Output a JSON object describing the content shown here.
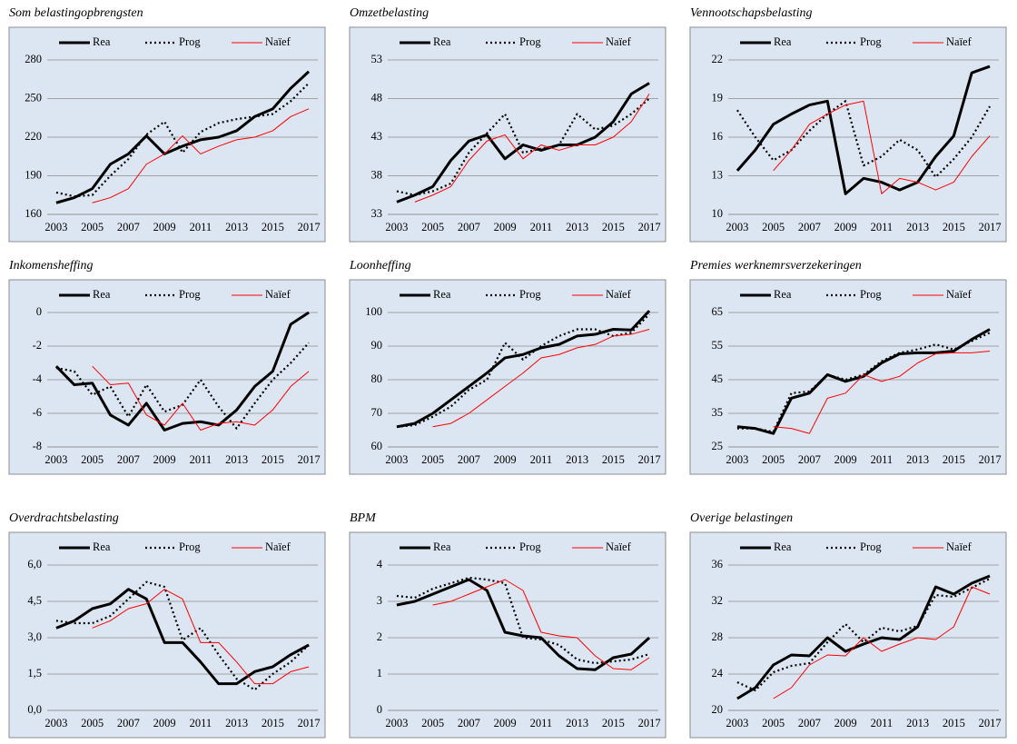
{
  "chart_data": [
    {
      "type": "line",
      "title": "Som belastingopbrengsten",
      "categories": [
        "2003",
        null,
        "2005",
        null,
        "2007",
        null,
        "2009",
        null,
        "2011",
        null,
        "2013",
        null,
        "2015",
        null,
        "2017"
      ],
      "series": [
        {
          "name": "Rea",
          "color": "#000000",
          "values": [
            169,
            173,
            180,
            199,
            207,
            221,
            207,
            213,
            218,
            220,
            225,
            236,
            242,
            258,
            271
          ]
        },
        {
          "name": "Prog",
          "color": "#000000",
          "values": [
            177,
            174,
            175,
            190,
            203,
            222,
            232,
            208,
            224,
            231,
            234,
            236,
            238,
            248,
            262
          ]
        },
        {
          "name": "Naïef",
          "color": "#ff0000",
          "values": [
            null,
            null,
            169,
            173,
            180,
            199,
            207,
            221,
            207,
            213,
            218,
            220,
            225,
            236,
            242
          ]
        }
      ],
      "ylim": [
        160,
        280
      ],
      "yticks": [
        160,
        190,
        220,
        250,
        280
      ],
      "grid": true,
      "legend": "top"
    },
    {
      "type": "line",
      "title": "Omzetbelasting",
      "categories": [
        "2003",
        null,
        "2005",
        null,
        "2007",
        null,
        "2009",
        null,
        "2011",
        null,
        "2013",
        null,
        "2015",
        null,
        "2017"
      ],
      "series": [
        {
          "name": "Rea",
          "color": "#000000",
          "values": [
            34.6,
            35.5,
            36.6,
            40,
            42.5,
            43.3,
            40.2,
            42,
            41.3,
            42,
            42,
            43,
            45,
            48.6,
            50
          ]
        },
        {
          "name": "Prog",
          "color": "#000000",
          "values": [
            36,
            35.5,
            36,
            37,
            41,
            43.5,
            46,
            41,
            41.5,
            42,
            46,
            44,
            44.5,
            46,
            48
          ]
        },
        {
          "name": "Naïef",
          "color": "#ff0000",
          "values": [
            null,
            34.6,
            35.5,
            36.6,
            40,
            42.5,
            43.3,
            40.2,
            42,
            41.3,
            42,
            42,
            43,
            45,
            48.6
          ]
        }
      ],
      "ylim": [
        33,
        53
      ],
      "yticks": [
        33,
        38,
        43,
        48,
        53
      ],
      "grid": true,
      "legend": "top"
    },
    {
      "type": "line",
      "title": "Vennootschapsbelasting",
      "categories": [
        "2003",
        null,
        "2005",
        null,
        "2007",
        null,
        "2009",
        null,
        "2011",
        null,
        "2013",
        null,
        "2015",
        null,
        "2017"
      ],
      "series": [
        {
          "name": "Rea",
          "color": "#000000",
          "values": [
            13.4,
            15,
            17,
            17.8,
            18.5,
            18.8,
            11.6,
            12.8,
            12.5,
            11.9,
            12.5,
            14.5,
            16.1,
            21,
            21.5
          ]
        },
        {
          "name": "Prog",
          "color": "#000000",
          "values": [
            18.1,
            16,
            14.2,
            15,
            16.5,
            17.8,
            18.8,
            13.8,
            14.5,
            15.8,
            15,
            12.9,
            14.3,
            16,
            18.4
          ]
        },
        {
          "name": "Naïef",
          "color": "#ff0000",
          "values": [
            null,
            null,
            13.4,
            15,
            17,
            17.8,
            18.5,
            18.8,
            11.6,
            12.8,
            12.5,
            11.9,
            12.5,
            14.5,
            16.1
          ]
        }
      ],
      "ylim": [
        10,
        22
      ],
      "yticks": [
        10,
        13,
        16,
        19,
        22
      ],
      "grid": true,
      "legend": "top"
    },
    {
      "type": "line",
      "title": "Inkomensheffing",
      "categories": [
        "2003",
        null,
        "2005",
        null,
        "2007",
        null,
        "2009",
        null,
        "2011",
        null,
        "2013",
        null,
        "2015",
        null,
        "2017"
      ],
      "series": [
        {
          "name": "Rea",
          "color": "#000000",
          "values": [
            -3.2,
            -4.3,
            -4.2,
            -6.1,
            -6.7,
            -5.4,
            -7,
            -6.6,
            -6.5,
            -6.7,
            -5.8,
            -4.4,
            -3.5,
            -0.7,
            0
          ]
        },
        {
          "name": "Prog",
          "color": "#000000",
          "values": [
            -3.3,
            -3.5,
            -4.9,
            -4.4,
            -6.2,
            -4.3,
            -5.9,
            -5.5,
            -4,
            -5.6,
            -6.9,
            -5.4,
            -4,
            -3,
            -1.8
          ]
        },
        {
          "name": "Naïef",
          "color": "#ff0000",
          "values": [
            null,
            null,
            -3.2,
            -4.3,
            -4.2,
            -6.1,
            -6.7,
            -5.4,
            -7,
            -6.6,
            -6.5,
            -6.7,
            -5.8,
            -4.4,
            -3.5
          ]
        }
      ],
      "ylim": [
        -8,
        0
      ],
      "yticks": [
        -8,
        -6,
        -4,
        -2,
        0
      ],
      "grid": true,
      "legend": "top"
    },
    {
      "type": "line",
      "title": "Loonheffing",
      "categories": [
        "2003",
        null,
        "2005",
        null,
        "2007",
        null,
        "2009",
        null,
        "2011",
        null,
        "2013",
        null,
        "2015",
        null,
        "2017"
      ],
      "series": [
        {
          "name": "Rea",
          "color": "#000000",
          "values": [
            66,
            67,
            70,
            74,
            78,
            82,
            86.5,
            87.5,
            89.5,
            90.5,
            93,
            93.5,
            95,
            94.8,
            100.5
          ]
        },
        {
          "name": "Prog",
          "color": "#000000",
          "values": [
            66,
            66.5,
            69,
            72,
            77,
            80,
            91,
            86,
            90,
            93,
            95,
            95,
            93,
            94,
            99.5
          ]
        },
        {
          "name": "Naïef",
          "color": "#ff0000",
          "values": [
            null,
            null,
            66,
            67,
            70,
            74,
            78,
            82,
            86.5,
            87.5,
            89.5,
            90.5,
            93,
            93.5,
            95
          ]
        }
      ],
      "ylim": [
        60,
        100
      ],
      "yticks": [
        60,
        70,
        80,
        90,
        100
      ],
      "grid": true,
      "legend": "top"
    },
    {
      "type": "line",
      "title": "Premies werknemrsverzekeringen",
      "categories": [
        "2003",
        null,
        "2005",
        null,
        "2007",
        null,
        "2009",
        null,
        "2011",
        null,
        "2013",
        null,
        "2015",
        null,
        "2017"
      ],
      "series": [
        {
          "name": "Rea",
          "color": "#000000",
          "values": [
            31,
            30.5,
            29,
            39.5,
            41,
            46.5,
            44.5,
            46,
            50,
            52.7,
            53,
            53,
            53.5,
            57,
            60
          ]
        },
        {
          "name": "Prog",
          "color": "#000000",
          "values": [
            30.5,
            30.5,
            29.5,
            41,
            41.5,
            46.5,
            45,
            46.5,
            50.5,
            53,
            54,
            55.5,
            54,
            56.5,
            59
          ]
        },
        {
          "name": "Naïef",
          "color": "#ff0000",
          "values": [
            null,
            null,
            31,
            30.5,
            29,
            39.5,
            41,
            46.5,
            44.5,
            46,
            50,
            52.7,
            53,
            53,
            53.5
          ]
        }
      ],
      "ylim": [
        25,
        65
      ],
      "yticks": [
        25,
        35,
        45,
        55,
        65
      ],
      "grid": true,
      "legend": "top"
    },
    {
      "type": "line",
      "title": "Overdrachtsbelasting",
      "categories": [
        "2003",
        null,
        "2005",
        null,
        "2007",
        null,
        "2009",
        null,
        "2011",
        null,
        "2013",
        null,
        "2015",
        null,
        "2017"
      ],
      "series": [
        {
          "name": "Rea",
          "color": "#000000",
          "values": [
            3.4,
            3.7,
            4.2,
            4.4,
            5,
            4.6,
            2.8,
            2.8,
            2,
            1.1,
            1.1,
            1.6,
            1.8,
            2.3,
            2.7
          ]
        },
        {
          "name": "Prog",
          "color": "#000000",
          "values": [
            3.7,
            3.6,
            3.6,
            3.9,
            4.6,
            5.3,
            5.1,
            2.9,
            3.4,
            2.3,
            1.3,
            0.85,
            1.5,
            2,
            2.7
          ]
        },
        {
          "name": "Naïef",
          "color": "#ff0000",
          "values": [
            null,
            null,
            3.4,
            3.7,
            4.2,
            4.4,
            5,
            4.6,
            2.8,
            2.8,
            2,
            1.1,
            1.1,
            1.6,
            1.8
          ]
        }
      ],
      "ylim": [
        0,
        6
      ],
      "yticks": [
        {
          "value": 0,
          "label": "0,0"
        },
        {
          "value": 1.5,
          "label": "1,5"
        },
        {
          "value": 3,
          "label": "3,0"
        },
        {
          "value": 4.5,
          "label": "4,5"
        },
        {
          "value": 6,
          "label": "6,0"
        }
      ],
      "grid": true,
      "legend": "top"
    },
    {
      "type": "line",
      "title": "BPM",
      "categories": [
        "2003",
        null,
        "2005",
        null,
        "2007",
        null,
        "2009",
        null,
        "2011",
        null,
        "2013",
        null,
        "2015",
        null,
        "2017"
      ],
      "series": [
        {
          "name": "Rea",
          "color": "#000000",
          "values": [
            2.9,
            3,
            3.2,
            3.4,
            3.6,
            3.3,
            2.15,
            2.05,
            2,
            1.5,
            1.15,
            1.12,
            1.45,
            1.55,
            2
          ]
        },
        {
          "name": "Prog",
          "color": "#000000",
          "values": [
            3.15,
            3.1,
            3.35,
            3.5,
            3.65,
            3.6,
            3.5,
            2,
            1.95,
            1.8,
            1.4,
            1.3,
            1.35,
            1.4,
            1.55
          ]
        },
        {
          "name": "Naïef",
          "color": "#ff0000",
          "values": [
            null,
            null,
            2.9,
            3,
            3.2,
            3.4,
            3.6,
            3.3,
            2.15,
            2.05,
            2,
            1.5,
            1.15,
            1.12,
            1.45
          ]
        }
      ],
      "ylim": [
        0,
        4
      ],
      "yticks": [
        0,
        1,
        2,
        3,
        4
      ],
      "grid": true,
      "legend": "top"
    },
    {
      "type": "line",
      "title": "Overige belastingen",
      "categories": [
        "2003",
        null,
        "2005",
        null,
        "2007",
        null,
        "2009",
        null,
        "2011",
        null,
        "2013",
        null,
        "2015",
        null,
        "2017"
      ],
      "series": [
        {
          "name": "Rea",
          "color": "#000000",
          "values": [
            21.3,
            22.5,
            25,
            26.1,
            26,
            28,
            26.5,
            27.3,
            28,
            27.8,
            29.2,
            33.6,
            32.8,
            34,
            34.8
          ]
        },
        {
          "name": "Prog",
          "color": "#000000",
          "values": [
            23.1,
            22.2,
            24.2,
            24.9,
            25.2,
            27.5,
            29.5,
            27.5,
            29.1,
            28.7,
            29.3,
            32.7,
            32.5,
            33.5,
            34.5
          ]
        },
        {
          "name": "Naïef",
          "color": "#ff0000",
          "values": [
            null,
            null,
            21.3,
            22.5,
            25,
            26.1,
            26,
            28,
            26.5,
            27.3,
            28,
            27.8,
            29.2,
            33.6,
            32.8
          ]
        }
      ],
      "ylim": [
        20,
        36
      ],
      "yticks": [
        20,
        24,
        28,
        32,
        36
      ],
      "grid": true,
      "legend": "top"
    }
  ]
}
